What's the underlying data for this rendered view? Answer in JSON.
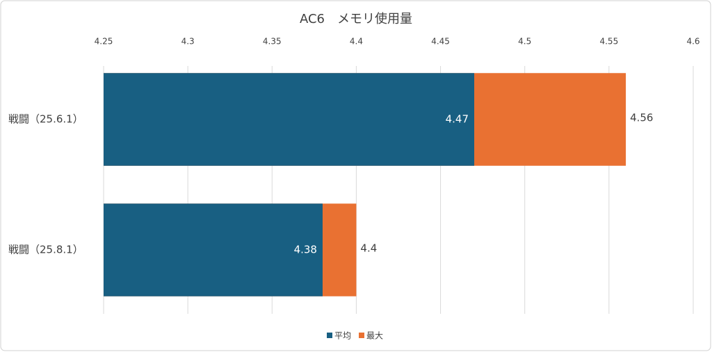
{
  "chart_data": {
    "type": "bar",
    "orientation": "horizontal",
    "title": "AC6　メモリ使用量",
    "categories": [
      "戦闘（25.6.1）",
      "戦闘（25.8.1）"
    ],
    "series": [
      {
        "name": "平均",
        "color": "#185f82",
        "values": [
          4.47,
          4.38
        ]
      },
      {
        "name": "最大",
        "color": "#e97132",
        "values": [
          4.56,
          4.4
        ]
      }
    ],
    "xlim": [
      4.25,
      4.6
    ],
    "xticks": [
      4.25,
      4.3,
      4.35,
      4.4,
      4.45,
      4.5,
      4.55,
      4.6
    ],
    "grid": true,
    "legend": "bottom"
  }
}
